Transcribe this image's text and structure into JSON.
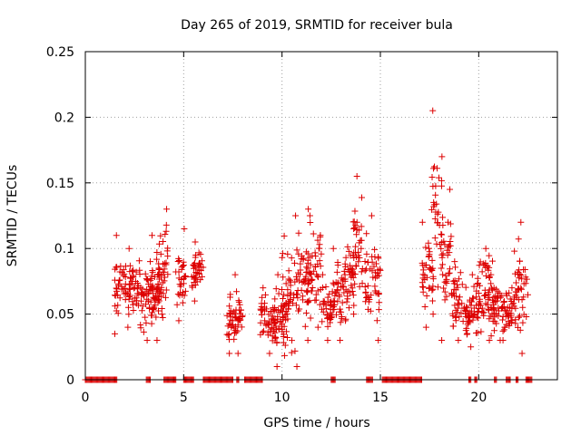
{
  "chart_data": {
    "type": "scatter",
    "title": "Day 265 of 2019, SRMTID for receiver bula",
    "xlabel": "GPS time / hours",
    "ylabel": "SRMTID / TECUs",
    "xlim": [
      0,
      24
    ],
    "ylim": [
      0,
      0.25
    ],
    "x_ticks": [
      0,
      5,
      10,
      15,
      20
    ],
    "x_tick_labels": [
      "0",
      "5",
      "10",
      "15",
      "20"
    ],
    "y_ticks": [
      0,
      0.05,
      0.1,
      0.15,
      0.2,
      0.25
    ],
    "y_tick_labels": [
      "0",
      "0.05",
      "0.1",
      "0.15",
      "0.2",
      "0.25"
    ],
    "grid": true,
    "marker": "+",
    "color": "#dd0000",
    "clusters": [
      {
        "x": [
          1.5,
          1.9
        ],
        "y": [
          0.035,
          0.11
        ]
      },
      {
        "x": [
          1.9,
          2.8
        ],
        "y": [
          0.04,
          0.1
        ]
      },
      {
        "x": [
          2.8,
          3.6
        ],
        "y": [
          0.03,
          0.09
        ]
      },
      {
        "x": [
          3.3,
          4.0
        ],
        "y": [
          0.03,
          0.11
        ]
      },
      {
        "x": [
          3.7,
          4.2
        ],
        "y": [
          0.05,
          0.13
        ]
      },
      {
        "x": [
          4.6,
          5.1
        ],
        "y": [
          0.045,
          0.115
        ]
      },
      {
        "x": [
          5.4,
          6.0
        ],
        "y": [
          0.06,
          0.105
        ]
      },
      {
        "x": [
          7.2,
          7.7
        ],
        "y": [
          0.02,
          0.065
        ]
      },
      {
        "x": [
          7.6,
          8.0
        ],
        "y": [
          0.02,
          0.08
        ]
      },
      {
        "x": [
          8.9,
          9.7
        ],
        "y": [
          0.02,
          0.07
        ]
      },
      {
        "x": [
          9.5,
          10.3
        ],
        "y": [
          0.01,
          0.08
        ]
      },
      {
        "x": [
          10.0,
          10.8
        ],
        "y": [
          0.01,
          0.125
        ]
      },
      {
        "x": [
          10.8,
          11.5
        ],
        "y": [
          0.03,
          0.13
        ]
      },
      {
        "x": [
          11.3,
          12.0
        ],
        "y": [
          0.04,
          0.125
        ]
      },
      {
        "x": [
          12.0,
          12.6
        ],
        "y": [
          0.03,
          0.08
        ]
      },
      {
        "x": [
          12.6,
          13.3
        ],
        "y": [
          0.03,
          0.1
        ]
      },
      {
        "x": [
          13.2,
          13.8
        ],
        "y": [
          0.045,
          0.115
        ]
      },
      {
        "x": [
          13.6,
          14.1
        ],
        "y": [
          0.05,
          0.155
        ]
      },
      {
        "x": [
          14.2,
          15.0
        ],
        "y": [
          0.03,
          0.125
        ]
      },
      {
        "x": [
          17.1,
          17.7
        ],
        "y": [
          0.04,
          0.12
        ]
      },
      {
        "x": [
          17.6,
          18.2
        ],
        "y": [
          0.05,
          0.205
        ]
      },
      {
        "x": [
          18.1,
          18.6
        ],
        "y": [
          0.03,
          0.145
        ]
      },
      {
        "x": [
          18.6,
          19.2
        ],
        "y": [
          0.03,
          0.09
        ]
      },
      {
        "x": [
          19.2,
          20.0
        ],
        "y": [
          0.025,
          0.08
        ]
      },
      {
        "x": [
          19.9,
          20.7
        ],
        "y": [
          0.03,
          0.1
        ]
      },
      {
        "x": [
          20.5,
          21.2
        ],
        "y": [
          0.03,
          0.08
        ]
      },
      {
        "x": [
          21.2,
          21.9
        ],
        "y": [
          0.03,
          0.07
        ]
      },
      {
        "x": [
          21.8,
          22.5
        ],
        "y": [
          0.02,
          0.12
        ]
      }
    ],
    "zero_ranges": [
      [
        0.0,
        1.6
      ],
      [
        3.1,
        3.3
      ],
      [
        4.0,
        4.6
      ],
      [
        5.0,
        5.5
      ],
      [
        6.0,
        7.5
      ],
      [
        7.7,
        7.8
      ],
      [
        8.1,
        9.0
      ],
      [
        12.5,
        12.7
      ],
      [
        14.3,
        14.6
      ],
      [
        15.1,
        17.1
      ],
      [
        19.5,
        19.6
      ],
      [
        19.8,
        19.9
      ],
      [
        20.8,
        20.9
      ],
      [
        21.4,
        21.6
      ],
      [
        21.9,
        22.0
      ],
      [
        22.4,
        22.7
      ]
    ]
  }
}
